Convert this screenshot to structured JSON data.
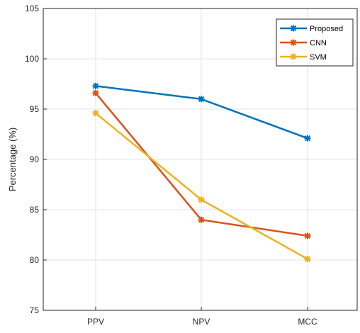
{
  "chart_data": {
    "type": "line",
    "categories": [
      "PPV",
      "NPV",
      "MCC"
    ],
    "ylabel": "Percentage (%)",
    "ylim": [
      75,
      105
    ],
    "yticks": [
      75,
      80,
      85,
      90,
      95,
      100,
      105
    ],
    "grid": true,
    "legend_position": "top-right",
    "series": [
      {
        "name": "Proposed",
        "color": "#0072BD",
        "values": [
          97.3,
          96.0,
          92.1
        ]
      },
      {
        "name": "CNN",
        "color": "#D95319",
        "values": [
          96.6,
          84.0,
          82.4
        ]
      },
      {
        "name": "SVM",
        "color": "#EDB120",
        "values": [
          94.6,
          86.0,
          80.1
        ]
      }
    ]
  }
}
